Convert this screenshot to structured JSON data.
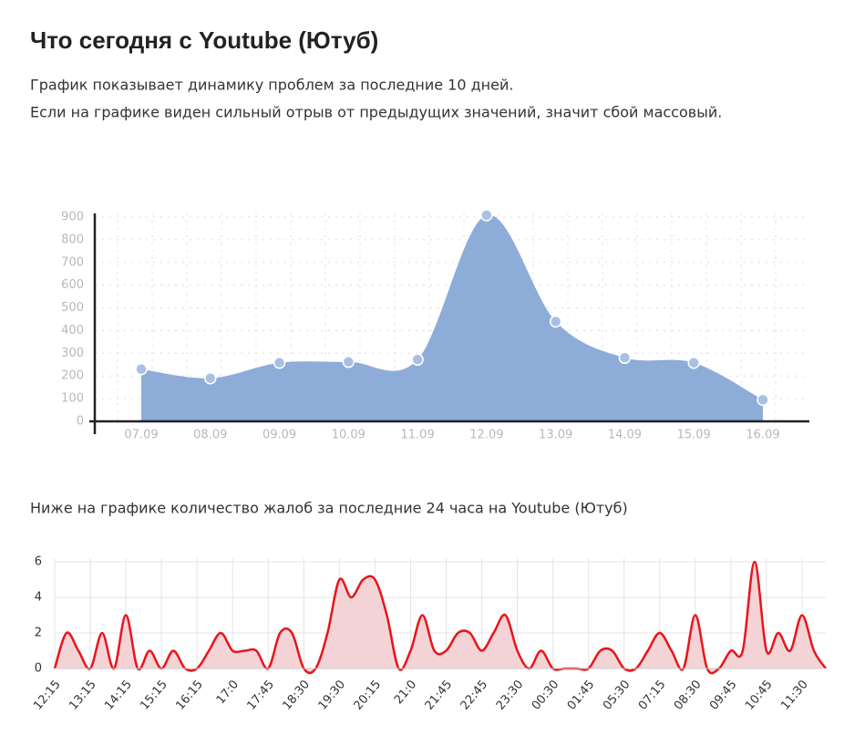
{
  "title": "Что сегодня с Youtube (Ютуб)",
  "description": [
    "График показывает динамику проблем за последние 10 дней.",
    "Если на графике виден сильный отрыв от предыдущих значений, значит сбой массовый."
  ],
  "chart_data": [
    {
      "type": "area",
      "categories": [
        "07.09",
        "08.09",
        "09.09",
        "10.09",
        "11.09",
        "12.09",
        "13.09",
        "14.09",
        "15.09",
        "16.09"
      ],
      "values": [
        230,
        190,
        258,
        262,
        272,
        908,
        440,
        280,
        258,
        95
      ],
      "color": "#8eacd8",
      "markers": true,
      "grid": true,
      "ylim": [
        0,
        900
      ],
      "yticks": [
        0,
        100,
        200,
        300,
        400,
        500,
        600,
        700,
        800,
        900
      ]
    },
    {
      "type": "area",
      "title": "Ниже на графике количество жалоб за последние 24 часа на Youtube (Ютуб)",
      "categories": [
        "12:15",
        null,
        null,
        "13:15",
        null,
        null,
        "14:15",
        null,
        null,
        "15:15",
        null,
        null,
        "16:15",
        null,
        null,
        "17:0",
        null,
        null,
        "17:45",
        null,
        null,
        "18:30",
        null,
        null,
        "19:30",
        null,
        null,
        "20:15",
        null,
        null,
        "21:0",
        null,
        null,
        "21:45",
        null,
        null,
        "22:45",
        null,
        null,
        "23:30",
        null,
        null,
        "00:30",
        null,
        null,
        "01:45",
        null,
        null,
        "05:30",
        null,
        null,
        "07:15",
        null,
        null,
        "08:30",
        null,
        null,
        "09:45",
        null,
        null,
        "10:45",
        null,
        null,
        "11:30",
        null,
        null
      ],
      "values": [
        0,
        2,
        1,
        0,
        2,
        0,
        3,
        0,
        1,
        0,
        1,
        0,
        0,
        1,
        2,
        1,
        1,
        1,
        0,
        2,
        2,
        0,
        0,
        2,
        5,
        4,
        5,
        5,
        3,
        0,
        1,
        3,
        1,
        1,
        2,
        2,
        1,
        2,
        3,
        1,
        0,
        1,
        0,
        0,
        0,
        0,
        1,
        1,
        0,
        0,
        1,
        2,
        1,
        0,
        3,
        0,
        0,
        1,
        1,
        6,
        1,
        2,
        1,
        3,
        1,
        0
      ],
      "color": "#e8151b",
      "fill": "#f4d3d6",
      "markers": false,
      "grid": true,
      "ylim": [
        0,
        6
      ],
      "yticks": [
        0,
        2,
        4,
        6
      ]
    }
  ]
}
